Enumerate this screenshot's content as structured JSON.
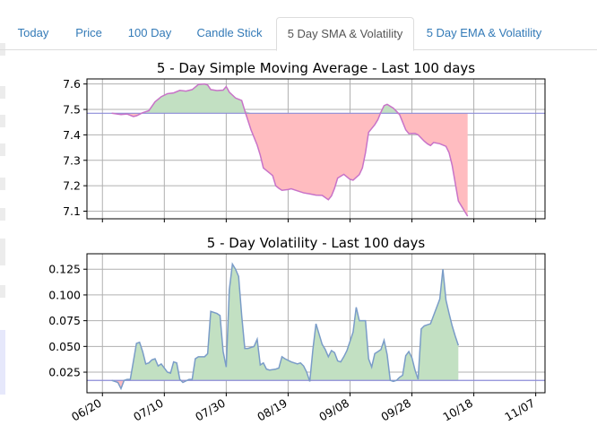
{
  "tabs": [
    {
      "label": "Today",
      "active": false
    },
    {
      "label": "Price",
      "active": false
    },
    {
      "label": "100 Day",
      "active": false
    },
    {
      "label": "Candle Stick",
      "active": false
    },
    {
      "label": "5 Day SMA & Volatility",
      "active": true
    },
    {
      "label": "5 Day EMA & Volatility",
      "active": false
    }
  ],
  "chart_data": [
    {
      "type": "area",
      "title": "5 - Day Simple Moving Average - Last 100 days",
      "xlabel": "",
      "ylabel": "",
      "ylim": [
        7.07,
        7.62
      ],
      "yticks": [
        7.1,
        7.2,
        7.3,
        7.4,
        7.5,
        7.6
      ],
      "baseline": 7.485,
      "grid": true,
      "above_color": "#c2e0c2",
      "below_color": "#ffbcc0",
      "line_color": "#c873c8",
      "points": [
        [
          0,
          7.485
        ],
        [
          3,
          7.48
        ],
        [
          5,
          7.482
        ],
        [
          7,
          7.472
        ],
        [
          8,
          7.475
        ],
        [
          10,
          7.487
        ],
        [
          12,
          7.495
        ],
        [
          14,
          7.53
        ],
        [
          16,
          7.55
        ],
        [
          18,
          7.562
        ],
        [
          20,
          7.565
        ],
        [
          22,
          7.575
        ],
        [
          24,
          7.572
        ],
        [
          26,
          7.578
        ],
        [
          28,
          7.598
        ],
        [
          30,
          7.6
        ],
        [
          31,
          7.596
        ],
        [
          32,
          7.578
        ],
        [
          34,
          7.574
        ],
        [
          36,
          7.576
        ],
        [
          37,
          7.59
        ],
        [
          38,
          7.568
        ],
        [
          40,
          7.545
        ],
        [
          42,
          7.535
        ],
        [
          43,
          7.495
        ],
        [
          45,
          7.42
        ],
        [
          47,
          7.36
        ],
        [
          48,
          7.32
        ],
        [
          49,
          7.27
        ],
        [
          51,
          7.25
        ],
        [
          52,
          7.24
        ],
        [
          53,
          7.2
        ],
        [
          54,
          7.19
        ],
        [
          55,
          7.182
        ],
        [
          57,
          7.185
        ],
        [
          58,
          7.188
        ],
        [
          60,
          7.18
        ],
        [
          62,
          7.172
        ],
        [
          64,
          7.168
        ],
        [
          66,
          7.163
        ],
        [
          68,
          7.162
        ],
        [
          70,
          7.145
        ],
        [
          71,
          7.16
        ],
        [
          72,
          7.19
        ],
        [
          73,
          7.23
        ],
        [
          75,
          7.245
        ],
        [
          77,
          7.225
        ],
        [
          78,
          7.222
        ],
        [
          80,
          7.244
        ],
        [
          81,
          7.27
        ],
        [
          82,
          7.33
        ],
        [
          83,
          7.41
        ],
        [
          85,
          7.44
        ],
        [
          86,
          7.46
        ],
        [
          87,
          7.49
        ],
        [
          88,
          7.515
        ],
        [
          89,
          7.52
        ],
        [
          91,
          7.505
        ],
        [
          93,
          7.48
        ],
        [
          94,
          7.45
        ],
        [
          95,
          7.42
        ],
        [
          96,
          7.405
        ],
        [
          98,
          7.406
        ],
        [
          99,
          7.4
        ],
        [
          101,
          7.375
        ],
        [
          102,
          7.365
        ],
        [
          103,
          7.358
        ],
        [
          104,
          7.37
        ],
        [
          106,
          7.365
        ],
        [
          108,
          7.355
        ],
        [
          109,
          7.33
        ],
        [
          110,
          7.28
        ],
        [
          111,
          7.21
        ],
        [
          112,
          7.14
        ],
        [
          113,
          7.12
        ],
        [
          114,
          7.1
        ],
        [
          115,
          7.08
        ]
      ]
    },
    {
      "type": "area",
      "title": "5 - Day Volatility - Last 100 days",
      "xlabel": "",
      "ylabel": "",
      "ylim": [
        0.005,
        0.14
      ],
      "yticks": [
        0.025,
        0.05,
        0.075,
        0.1,
        0.125
      ],
      "baseline": 0.017,
      "grid": true,
      "above_color": "#c2e0c2",
      "below_color": "#ffbcc0",
      "line_color": "#7a9cc8",
      "x_dates": [
        "06/20",
        "07/10",
        "07/30",
        "08/19",
        "09/08",
        "09/28",
        "10/18",
        "11/07"
      ],
      "x_date_positions": [
        -3,
        17,
        37,
        57,
        77,
        97,
        117,
        137
      ],
      "points": [
        [
          0,
          0.017
        ],
        [
          2,
          0.015
        ],
        [
          3,
          0.009
        ],
        [
          4,
          0.017
        ],
        [
          5,
          0.018
        ],
        [
          6,
          0.018
        ],
        [
          8,
          0.053
        ],
        [
          9,
          0.054
        ],
        [
          10,
          0.045
        ],
        [
          11,
          0.033
        ],
        [
          12,
          0.034
        ],
        [
          13,
          0.037
        ],
        [
          14,
          0.038
        ],
        [
          15,
          0.031
        ],
        [
          16,
          0.033
        ],
        [
          17,
          0.029
        ],
        [
          18,
          0.025
        ],
        [
          19,
          0.024
        ],
        [
          20,
          0.035
        ],
        [
          21,
          0.034
        ],
        [
          22,
          0.018
        ],
        [
          23,
          0.015
        ],
        [
          25,
          0.018
        ],
        [
          26,
          0.018
        ],
        [
          27,
          0.038
        ],
        [
          28,
          0.04
        ],
        [
          30,
          0.04
        ],
        [
          31,
          0.043
        ],
        [
          32,
          0.084
        ],
        [
          34,
          0.082
        ],
        [
          35,
          0.08
        ],
        [
          36,
          0.045
        ],
        [
          37,
          0.03
        ],
        [
          38,
          0.105
        ],
        [
          39,
          0.13
        ],
        [
          40,
          0.125
        ],
        [
          41,
          0.118
        ],
        [
          42,
          0.08
        ],
        [
          43,
          0.048
        ],
        [
          44,
          0.048
        ],
        [
          46,
          0.05
        ],
        [
          47,
          0.057
        ],
        [
          48,
          0.032
        ],
        [
          49,
          0.034
        ],
        [
          50,
          0.028
        ],
        [
          51,
          0.027
        ],
        [
          53,
          0.028
        ],
        [
          54,
          0.029
        ],
        [
          55,
          0.04
        ],
        [
          56,
          0.038
        ],
        [
          58,
          0.035
        ],
        [
          60,
          0.033
        ],
        [
          61,
          0.034
        ],
        [
          62,
          0.031
        ],
        [
          63,
          0.025
        ],
        [
          64,
          0.016
        ],
        [
          65,
          0.047
        ],
        [
          66,
          0.072
        ],
        [
          67,
          0.062
        ],
        [
          68,
          0.052
        ],
        [
          69,
          0.047
        ],
        [
          70,
          0.04
        ],
        [
          71,
          0.046
        ],
        [
          72,
          0.044
        ],
        [
          73,
          0.036
        ],
        [
          74,
          0.035
        ],
        [
          75,
          0.04
        ],
        [
          76,
          0.046
        ],
        [
          77,
          0.055
        ],
        [
          78,
          0.064
        ],
        [
          79,
          0.088
        ],
        [
          80,
          0.075
        ],
        [
          81,
          0.075
        ],
        [
          82,
          0.075
        ],
        [
          83,
          0.038
        ],
        [
          84,
          0.03
        ],
        [
          85,
          0.043
        ],
        [
          86,
          0.045
        ],
        [
          87,
          0.047
        ],
        [
          88,
          0.056
        ],
        [
          89,
          0.042
        ],
        [
          90,
          0.017
        ],
        [
          91,
          0.016
        ],
        [
          92,
          0.017
        ],
        [
          93,
          0.02
        ],
        [
          94,
          0.022
        ],
        [
          95,
          0.041
        ],
        [
          96,
          0.045
        ],
        [
          97,
          0.039
        ],
        [
          98,
          0.027
        ],
        [
          99,
          0.018
        ],
        [
          100,
          0.067
        ],
        [
          101,
          0.07
        ],
        [
          102,
          0.071
        ],
        [
          103,
          0.072
        ],
        [
          104,
          0.08
        ],
        [
          105,
          0.088
        ],
        [
          106,
          0.096
        ],
        [
          107,
          0.125
        ],
        [
          108,
          0.095
        ],
        [
          109,
          0.082
        ],
        [
          110,
          0.07
        ],
        [
          111,
          0.06
        ],
        [
          112,
          0.051
        ]
      ]
    }
  ]
}
